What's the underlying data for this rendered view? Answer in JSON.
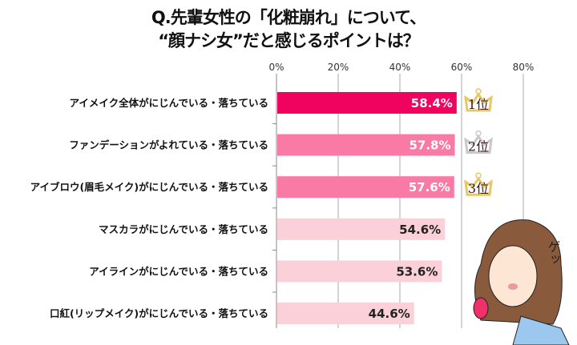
{
  "title_line1": "Q.先輩女性の「化粧崩れ」について、",
  "title_line2": "“顔ナシ女”だと感じるポイントは？",
  "chart_data": {
    "type": "bar",
    "orientation": "horizontal",
    "title": "Q.先輩女性の「化粧崩れ」について、“顔ナシ女”だと感じるポイントは？",
    "categories": [
      "アイメイク全体がにじんでいる・落ちている",
      "ファンデーションがよれている・落ちている",
      "アイブロウ(眉毛メイク)がにじんでいる・落ちている",
      "マスカラがにじんでいる・落ちている",
      "アイラインがにじんでいる・落ちている",
      "口紅(リップメイク)がにじんでいる・落ちている"
    ],
    "values": [
      58.4,
      57.8,
      57.6,
      54.6,
      53.6,
      44.6
    ],
    "data_labels": [
      "58.4%",
      "57.8%",
      "57.6%",
      "54.6%",
      "53.6%",
      "44.6%"
    ],
    "xlim": [
      0,
      80
    ],
    "x_ticks": [
      "0%",
      "20%",
      "40%",
      "60%",
      "80%"
    ],
    "x_tick_values": [
      0,
      20,
      40,
      60,
      80
    ],
    "grid": true,
    "bar_colors": [
      "#f0035f",
      "#f87aa5",
      "#f87aa5",
      "#fcd0d8",
      "#fcd0d8",
      "#fcd0d8"
    ],
    "label_colors": [
      "#ffffff",
      "#ffffff",
      "#ffffff",
      "#222222",
      "#222222",
      "#222222"
    ],
    "rank_badges": [
      "1位",
      "2位",
      "3位"
    ],
    "badge_colors": [
      "#e9c766",
      "#c9c9c9",
      "#e9c766"
    ]
  },
  "illustration": {
    "text": "ゲッ"
  }
}
